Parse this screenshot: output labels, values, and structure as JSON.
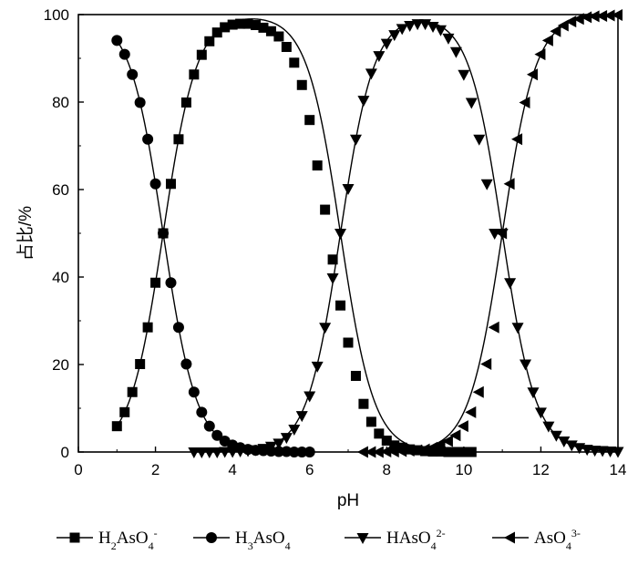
{
  "chart_data": {
    "type": "line",
    "xlabel": "pH",
    "ylabel": "占比/%",
    "xlim": [
      0,
      14
    ],
    "ylim": [
      0,
      100
    ],
    "xticks": [
      0,
      2,
      4,
      6,
      8,
      10,
      12,
      14
    ],
    "yticks": [
      0,
      20,
      40,
      60,
      80,
      100
    ],
    "x_tick_labels": [
      "0",
      "2",
      "4",
      "6",
      "8",
      "10",
      "12",
      "14"
    ],
    "y_tick_labels": [
      "0",
      "20",
      "40",
      "60",
      "80",
      "100"
    ],
    "grid": false,
    "legend_position": "bottom",
    "pKa": [
      2.2,
      6.8,
      11.0
    ],
    "series": [
      {
        "name": "H2AsO4-",
        "legend": {
          "base": "H",
          "sub1": "2",
          "mid": "AsO",
          "sub2": "4",
          "sup": "-"
        },
        "marker": "square",
        "x": [
          1.0,
          1.2,
          1.4,
          1.6,
          1.8,
          2.0,
          2.2,
          2.4,
          2.6,
          2.8,
          3.0,
          3.2,
          3.4,
          3.6,
          3.8,
          4.0,
          4.2,
          4.4,
          4.6,
          4.8,
          5.0,
          5.2,
          5.4,
          5.6,
          5.8,
          6.0,
          6.2,
          6.4,
          6.6,
          6.8,
          7.0,
          7.2,
          7.4,
          7.6,
          7.8,
          8.0,
          8.2,
          8.4,
          8.6,
          8.8,
          9.0,
          9.2,
          9.4,
          9.6,
          9.8,
          10.0,
          10.2
        ],
        "values": [
          5.9,
          9.1,
          13.7,
          20.1,
          28.5,
          38.7,
          50.0,
          61.3,
          71.5,
          79.9,
          86.3,
          90.8,
          93.9,
          95.9,
          97.1,
          97.7,
          97.9,
          97.9,
          97.6,
          97.0,
          96.2,
          95.0,
          92.6,
          89.0,
          83.9,
          75.9,
          65.5,
          55.4,
          44.0,
          33.5,
          25.0,
          17.4,
          11.0,
          6.9,
          4.2,
          2.6,
          1.5,
          1.0,
          0.6,
          0.4,
          0.2,
          0.1,
          0.1,
          0.0,
          0.0,
          0.0,
          0.0
        ]
      },
      {
        "name": "H3AsO4",
        "legend": {
          "base": "H",
          "sub1": "3",
          "mid": "AsO",
          "sub2": "4",
          "sup": ""
        },
        "marker": "circle",
        "x": [
          1.0,
          1.2,
          1.4,
          1.6,
          1.8,
          2.0,
          2.2,
          2.4,
          2.6,
          2.8,
          3.0,
          3.2,
          3.4,
          3.6,
          3.8,
          4.0,
          4.2,
          4.4,
          4.6,
          4.8,
          5.0,
          5.2,
          5.4,
          5.6,
          5.8,
          6.0
        ],
        "values": [
          94.1,
          90.9,
          86.3,
          79.9,
          71.5,
          61.3,
          50.0,
          38.7,
          28.5,
          20.1,
          13.7,
          9.1,
          5.9,
          3.8,
          2.5,
          1.6,
          1.0,
          0.6,
          0.4,
          0.3,
          0.2,
          0.1,
          0.1,
          0.0,
          0.0,
          0.0
        ]
      },
      {
        "name": "HAsO4 2-",
        "legend": {
          "base": "HAsO",
          "sub1": "4",
          "mid": "",
          "sub2": "",
          "sup": "2-"
        },
        "marker": "triangle-down",
        "x": [
          3.0,
          3.2,
          3.4,
          3.6,
          3.8,
          4.0,
          4.2,
          4.4,
          4.6,
          4.8,
          5.0,
          5.2,
          5.4,
          5.6,
          5.8,
          6.0,
          6.2,
          6.4,
          6.6,
          6.8,
          7.0,
          7.2,
          7.4,
          7.6,
          7.8,
          8.0,
          8.2,
          8.4,
          8.6,
          8.8,
          9.0,
          9.2,
          9.4,
          9.6,
          9.8,
          10.0,
          10.2,
          10.4,
          10.6,
          10.8,
          11.0,
          11.2,
          11.4,
          11.6,
          11.8,
          12.0,
          12.2,
          12.4,
          12.6,
          12.8,
          13.0,
          13.2,
          13.4,
          13.6,
          13.8,
          14.0
        ],
        "values": [
          0.0,
          0.0,
          0.0,
          0.0,
          0.1,
          0.1,
          0.2,
          0.3,
          0.5,
          0.8,
          1.3,
          2.0,
          3.3,
          5.2,
          8.3,
          12.8,
          19.6,
          28.5,
          39.8,
          50.0,
          60.2,
          71.5,
          80.4,
          86.6,
          90.6,
          93.4,
          95.4,
          96.8,
          97.5,
          97.9,
          97.9,
          97.3,
          96.5,
          94.6,
          91.5,
          86.3,
          79.9,
          71.5,
          61.3,
          50.0,
          50.0,
          38.7,
          28.5,
          20.1,
          13.7,
          9.1,
          5.9,
          3.8,
          2.5,
          1.6,
          1.0,
          0.6,
          0.4,
          0.3,
          0.2,
          0.1
        ]
      },
      {
        "name": "AsO4 3-",
        "legend": {
          "base": "AsO",
          "sub1": "4",
          "mid": "",
          "sub2": "",
          "sup": "3-"
        },
        "marker": "triangle-left",
        "x": [
          7.4,
          7.6,
          7.8,
          8.0,
          8.2,
          8.4,
          8.6,
          8.8,
          9.0,
          9.2,
          9.4,
          9.6,
          9.8,
          10.0,
          10.2,
          10.4,
          10.6,
          10.8,
          11.0,
          11.2,
          11.4,
          11.6,
          11.8,
          12.0,
          12.2,
          12.4,
          12.6,
          12.8,
          13.0,
          13.2,
          13.4,
          13.6,
          13.8,
          14.0
        ],
        "values": [
          0.0,
          0.0,
          0.0,
          0.1,
          0.1,
          0.2,
          0.3,
          0.4,
          0.6,
          1.0,
          1.6,
          2.5,
          3.8,
          5.9,
          9.1,
          13.7,
          20.1,
          28.5,
          50.0,
          61.3,
          71.5,
          79.9,
          86.3,
          90.9,
          94.1,
          96.2,
          97.5,
          98.4,
          99.0,
          99.4,
          99.6,
          99.7,
          99.8,
          99.9
        ]
      }
    ]
  }
}
